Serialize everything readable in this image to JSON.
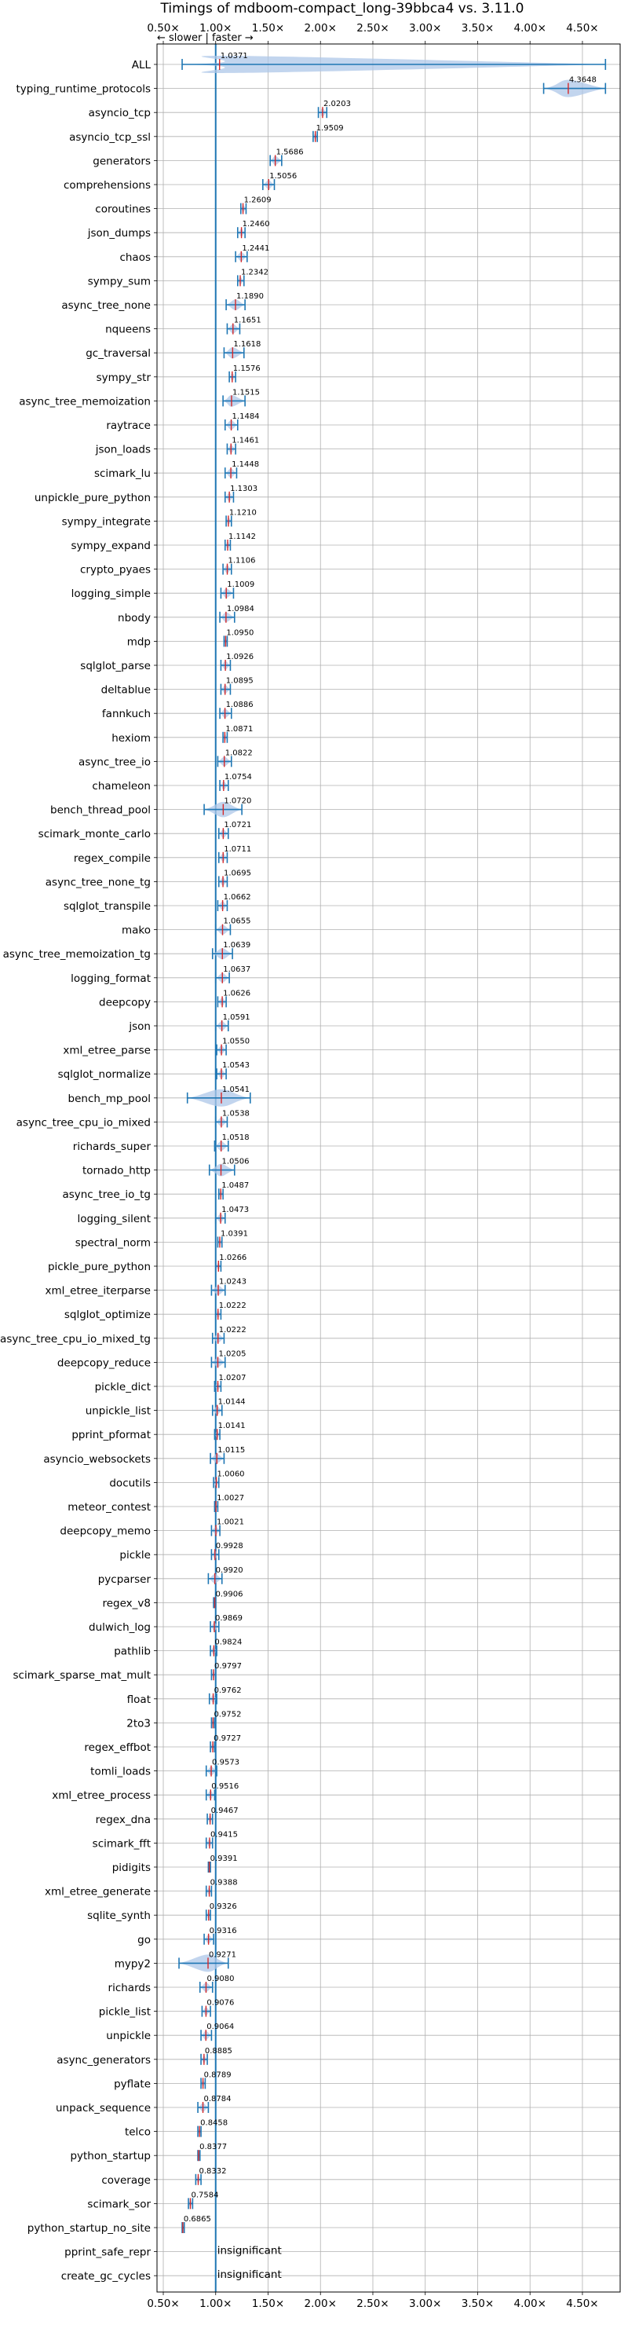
{
  "chart_data": {
    "type": "violin",
    "title": "Timings of mdboom-compact_long-39bbca4 vs. 3.11.0",
    "direction_hint": "← slower | faster →",
    "xlim": [
      0.44,
      4.86
    ],
    "x_ticks": [
      "0.50×",
      "1.00×",
      "1.50×",
      "2.00×",
      "2.50×",
      "3.00×",
      "3.50×",
      "4.00×",
      "4.50×"
    ],
    "x_tick_values": [
      0.5,
      1.0,
      1.5,
      2.0,
      2.5,
      3.0,
      3.5,
      4.0,
      4.5
    ],
    "reference_line": 1.0,
    "grid": true,
    "colors": {
      "line": "#1f77b4",
      "body": "#aec7e8",
      "median": "#d62728",
      "reference": "#1f77b4"
    },
    "benchmarks": [
      {
        "name": "ALL",
        "value": 1.0371,
        "label": "1.0371",
        "min": 0.68,
        "max": 4.72
      },
      {
        "name": "typing_runtime_protocols",
        "value": 4.3648,
        "label": "4.3648",
        "min": 4.13,
        "max": 4.72
      },
      {
        "name": "asyncio_tcp",
        "value": 2.0203,
        "label": "2.0203",
        "min": 1.98,
        "max": 2.06
      },
      {
        "name": "asyncio_tcp_ssl",
        "value": 1.9509,
        "label": "1.9509",
        "min": 1.93,
        "max": 1.97
      },
      {
        "name": "generators",
        "value": 1.5686,
        "label": "1.5686",
        "min": 1.52,
        "max": 1.63
      },
      {
        "name": "comprehensions",
        "value": 1.5056,
        "label": "1.5056",
        "min": 1.45,
        "max": 1.56
      },
      {
        "name": "coroutines",
        "value": 1.2609,
        "label": "1.2609",
        "min": 1.24,
        "max": 1.29
      },
      {
        "name": "json_dumps",
        "value": 1.246,
        "label": "1.2460",
        "min": 1.21,
        "max": 1.28
      },
      {
        "name": "chaos",
        "value": 1.2441,
        "label": "1.2441",
        "min": 1.19,
        "max": 1.3
      },
      {
        "name": "sympy_sum",
        "value": 1.2342,
        "label": "1.2342",
        "min": 1.21,
        "max": 1.27
      },
      {
        "name": "async_tree_none",
        "value": 1.189,
        "label": "1.1890",
        "min": 1.1,
        "max": 1.28
      },
      {
        "name": "nqueens",
        "value": 1.1651,
        "label": "1.1651",
        "min": 1.11,
        "max": 1.23
      },
      {
        "name": "gc_traversal",
        "value": 1.1618,
        "label": "1.1618",
        "min": 1.08,
        "max": 1.27
      },
      {
        "name": "sympy_str",
        "value": 1.1576,
        "label": "1.1576",
        "min": 1.13,
        "max": 1.19
      },
      {
        "name": "async_tree_memoization",
        "value": 1.1515,
        "label": "1.1515",
        "min": 1.07,
        "max": 1.28
      },
      {
        "name": "raytrace",
        "value": 1.1484,
        "label": "1.1484",
        "min": 1.09,
        "max": 1.21
      },
      {
        "name": "json_loads",
        "value": 1.1461,
        "label": "1.1461",
        "min": 1.11,
        "max": 1.19
      },
      {
        "name": "scimark_lu",
        "value": 1.1448,
        "label": "1.1448",
        "min": 1.09,
        "max": 1.2
      },
      {
        "name": "unpickle_pure_python",
        "value": 1.1303,
        "label": "1.1303",
        "min": 1.09,
        "max": 1.17
      },
      {
        "name": "sympy_integrate",
        "value": 1.121,
        "label": "1.1210",
        "min": 1.1,
        "max": 1.15
      },
      {
        "name": "sympy_expand",
        "value": 1.1142,
        "label": "1.1142",
        "min": 1.09,
        "max": 1.14
      },
      {
        "name": "crypto_pyaes",
        "value": 1.1106,
        "label": "1.1106",
        "min": 1.07,
        "max": 1.15
      },
      {
        "name": "logging_simple",
        "value": 1.1009,
        "label": "1.1009",
        "min": 1.05,
        "max": 1.17
      },
      {
        "name": "nbody",
        "value": 1.0984,
        "label": "1.0984",
        "min": 1.04,
        "max": 1.18
      },
      {
        "name": "mdp",
        "value": 1.095,
        "label": "1.0950",
        "min": 1.08,
        "max": 1.11
      },
      {
        "name": "sqlglot_parse",
        "value": 1.0926,
        "label": "1.0926",
        "min": 1.05,
        "max": 1.14
      },
      {
        "name": "deltablue",
        "value": 1.0895,
        "label": "1.0895",
        "min": 1.05,
        "max": 1.14
      },
      {
        "name": "fannkuch",
        "value": 1.0886,
        "label": "1.0886",
        "min": 1.04,
        "max": 1.15
      },
      {
        "name": "hexiom",
        "value": 1.0871,
        "label": "1.0871",
        "min": 1.07,
        "max": 1.11
      },
      {
        "name": "async_tree_io",
        "value": 1.0822,
        "label": "1.0822",
        "min": 1.02,
        "max": 1.15
      },
      {
        "name": "chameleon",
        "value": 1.0754,
        "label": "1.0754",
        "min": 1.04,
        "max": 1.12
      },
      {
        "name": "bench_thread_pool",
        "value": 1.072,
        "label": "1.0720",
        "min": 0.89,
        "max": 1.25
      },
      {
        "name": "scimark_monte_carlo",
        "value": 1.0721,
        "label": "1.0721",
        "min": 1.03,
        "max": 1.12
      },
      {
        "name": "regex_compile",
        "value": 1.0711,
        "label": "1.0711",
        "min": 1.03,
        "max": 1.11
      },
      {
        "name": "async_tree_none_tg",
        "value": 1.0695,
        "label": "1.0695",
        "min": 1.03,
        "max": 1.11
      },
      {
        "name": "sqlglot_transpile",
        "value": 1.0662,
        "label": "1.0662",
        "min": 1.02,
        "max": 1.11
      },
      {
        "name": "mako",
        "value": 1.0655,
        "label": "1.0655",
        "min": 1.0,
        "max": 1.14
      },
      {
        "name": "async_tree_memoization_tg",
        "value": 1.0639,
        "label": "1.0639",
        "min": 0.97,
        "max": 1.16
      },
      {
        "name": "logging_format",
        "value": 1.0637,
        "label": "1.0637",
        "min": 1.0,
        "max": 1.13
      },
      {
        "name": "deepcopy",
        "value": 1.0626,
        "label": "1.0626",
        "min": 1.02,
        "max": 1.1
      },
      {
        "name": "json",
        "value": 1.0591,
        "label": "1.0591",
        "min": 1.0,
        "max": 1.12
      },
      {
        "name": "xml_etree_parse",
        "value": 1.055,
        "label": "1.0550",
        "min": 1.01,
        "max": 1.1
      },
      {
        "name": "sqlglot_normalize",
        "value": 1.0543,
        "label": "1.0543",
        "min": 1.01,
        "max": 1.1
      },
      {
        "name": "bench_mp_pool",
        "value": 1.0541,
        "label": "1.0541",
        "min": 0.73,
        "max": 1.33
      },
      {
        "name": "async_tree_cpu_io_mixed",
        "value": 1.0538,
        "label": "1.0538",
        "min": 1.0,
        "max": 1.11
      },
      {
        "name": "richards_super",
        "value": 1.0518,
        "label": "1.0518",
        "min": 0.99,
        "max": 1.12
      },
      {
        "name": "tornado_http",
        "value": 1.0506,
        "label": "1.0506",
        "min": 0.94,
        "max": 1.18
      },
      {
        "name": "async_tree_io_tg",
        "value": 1.0487,
        "label": "1.0487",
        "min": 1.03,
        "max": 1.07
      },
      {
        "name": "logging_silent",
        "value": 1.0473,
        "label": "1.0473",
        "min": 1.0,
        "max": 1.09
      },
      {
        "name": "spectral_norm",
        "value": 1.0391,
        "label": "1.0391",
        "min": 1.02,
        "max": 1.06
      },
      {
        "name": "pickle_pure_python",
        "value": 1.0266,
        "label": "1.0266",
        "min": 1.0,
        "max": 1.05
      },
      {
        "name": "xml_etree_iterparse",
        "value": 1.0243,
        "label": "1.0243",
        "min": 0.96,
        "max": 1.09
      },
      {
        "name": "sqlglot_optimize",
        "value": 1.0222,
        "label": "1.0222",
        "min": 1.0,
        "max": 1.05
      },
      {
        "name": "async_tree_cpu_io_mixed_tg",
        "value": 1.0222,
        "label": "1.0222",
        "min": 0.97,
        "max": 1.08
      },
      {
        "name": "deepcopy_reduce",
        "value": 1.0205,
        "label": "1.0205",
        "min": 0.96,
        "max": 1.09
      },
      {
        "name": "pickle_dict",
        "value": 1.0207,
        "label": "1.0207",
        "min": 0.99,
        "max": 1.05
      },
      {
        "name": "unpickle_list",
        "value": 1.0144,
        "label": "1.0144",
        "min": 0.97,
        "max": 1.06
      },
      {
        "name": "pprint_pformat",
        "value": 1.0141,
        "label": "1.0141",
        "min": 0.99,
        "max": 1.04
      },
      {
        "name": "asyncio_websockets",
        "value": 1.0115,
        "label": "1.0115",
        "min": 0.95,
        "max": 1.08
      },
      {
        "name": "docutils",
        "value": 1.006,
        "label": "1.0060",
        "min": 0.98,
        "max": 1.03
      },
      {
        "name": "meteor_contest",
        "value": 1.0027,
        "label": "1.0027",
        "min": 0.99,
        "max": 1.02
      },
      {
        "name": "deepcopy_memo",
        "value": 1.0021,
        "label": "1.0021",
        "min": 0.96,
        "max": 1.04
      },
      {
        "name": "pickle",
        "value": 0.9928,
        "label": "0.9928",
        "min": 0.96,
        "max": 1.03
      },
      {
        "name": "pycparser",
        "value": 0.992,
        "label": "0.9920",
        "min": 0.93,
        "max": 1.06
      },
      {
        "name": "regex_v8",
        "value": 0.9906,
        "label": "0.9906",
        "min": 0.98,
        "max": 1.0
      },
      {
        "name": "dulwich_log",
        "value": 0.9869,
        "label": "0.9869",
        "min": 0.95,
        "max": 1.03
      },
      {
        "name": "pathlib",
        "value": 0.9824,
        "label": "0.9824",
        "min": 0.95,
        "max": 1.01
      },
      {
        "name": "scimark_sparse_mat_mult",
        "value": 0.9797,
        "label": "0.9797",
        "min": 0.96,
        "max": 1.0
      },
      {
        "name": "float",
        "value": 0.9762,
        "label": "0.9762",
        "min": 0.94,
        "max": 1.01
      },
      {
        "name": "2to3",
        "value": 0.9752,
        "label": "0.9752",
        "min": 0.96,
        "max": 0.99
      },
      {
        "name": "regex_effbot",
        "value": 0.9727,
        "label": "0.9727",
        "min": 0.95,
        "max": 0.99
      },
      {
        "name": "tomli_loads",
        "value": 0.9573,
        "label": "0.9573",
        "min": 0.91,
        "max": 1.01
      },
      {
        "name": "xml_etree_process",
        "value": 0.9516,
        "label": "0.9516",
        "min": 0.91,
        "max": 0.99
      },
      {
        "name": "regex_dna",
        "value": 0.9467,
        "label": "0.9467",
        "min": 0.92,
        "max": 0.97
      },
      {
        "name": "scimark_fft",
        "value": 0.9415,
        "label": "0.9415",
        "min": 0.91,
        "max": 0.97
      },
      {
        "name": "pidigits",
        "value": 0.9391,
        "label": "0.9391",
        "min": 0.93,
        "max": 0.95
      },
      {
        "name": "xml_etree_generate",
        "value": 0.9388,
        "label": "0.9388",
        "min": 0.91,
        "max": 0.96
      },
      {
        "name": "sqlite_synth",
        "value": 0.9326,
        "label": "0.9326",
        "min": 0.91,
        "max": 0.95
      },
      {
        "name": "go",
        "value": 0.9316,
        "label": "0.9316",
        "min": 0.89,
        "max": 0.98
      },
      {
        "name": "mypy2",
        "value": 0.9271,
        "label": "0.9271",
        "min": 0.65,
        "max": 1.12
      },
      {
        "name": "richards",
        "value": 0.908,
        "label": "0.9080",
        "min": 0.85,
        "max": 0.97
      },
      {
        "name": "pickle_list",
        "value": 0.9076,
        "label": "0.9076",
        "min": 0.87,
        "max": 0.95
      },
      {
        "name": "unpickle",
        "value": 0.9064,
        "label": "0.9064",
        "min": 0.86,
        "max": 0.96
      },
      {
        "name": "async_generators",
        "value": 0.8885,
        "label": "0.8885",
        "min": 0.86,
        "max": 0.92
      },
      {
        "name": "pyflate",
        "value": 0.8789,
        "label": "0.8789",
        "min": 0.86,
        "max": 0.9
      },
      {
        "name": "unpack_sequence",
        "value": 0.8784,
        "label": "0.8784",
        "min": 0.83,
        "max": 0.93
      },
      {
        "name": "telco",
        "value": 0.8458,
        "label": "0.8458",
        "min": 0.83,
        "max": 0.86
      },
      {
        "name": "python_startup",
        "value": 0.8377,
        "label": "0.8377",
        "min": 0.83,
        "max": 0.85
      },
      {
        "name": "coverage",
        "value": 0.8332,
        "label": "0.8332",
        "min": 0.81,
        "max": 0.86
      },
      {
        "name": "scimark_sor",
        "value": 0.7584,
        "label": "0.7584",
        "min": 0.74,
        "max": 0.78
      },
      {
        "name": "python_startup_no_site",
        "value": 0.6865,
        "label": "0.6865",
        "min": 0.68,
        "max": 0.7
      },
      {
        "name": "pprint_safe_repr",
        "value": null,
        "label": "insignificant"
      },
      {
        "name": "create_gc_cycles",
        "value": null,
        "label": "insignificant"
      }
    ]
  }
}
